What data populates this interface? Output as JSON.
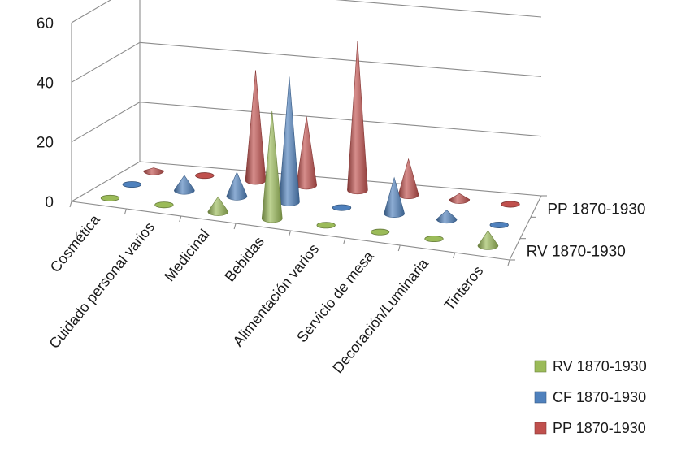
{
  "chart_data": {
    "type": "bar",
    "subtype": "3d-cone",
    "title": "",
    "xlabel": "",
    "ylabel": "",
    "ylim": [
      0,
      60
    ],
    "yticks": [
      "0",
      "20",
      "40",
      "60"
    ],
    "grid": true,
    "legend_position": "bottom-right",
    "categories": [
      "Cosmética",
      "Cuidado personal varios",
      "Medicinal",
      "Bebidas",
      "Alimentación varios",
      "Servicio de mesa",
      "Decoración/Luminaria",
      "Tinteros"
    ],
    "depth_labels": [
      "PP 1870-1930",
      "RV 1870-1930"
    ],
    "series": [
      {
        "name": "RV 1870-1930",
        "color": "#9bbb59",
        "values": [
          0,
          0,
          5,
          36,
          0,
          0,
          0,
          5
        ]
      },
      {
        "name": "CF 1870-1930",
        "color": "#4f81bd",
        "values": [
          0,
          5,
          8,
          42,
          0,
          12,
          3,
          0
        ]
      },
      {
        "name": "PP 1870-1930",
        "color": "#c0504d",
        "values": [
          1,
          0,
          37,
          23,
          50,
          12,
          2,
          0
        ]
      }
    ]
  }
}
